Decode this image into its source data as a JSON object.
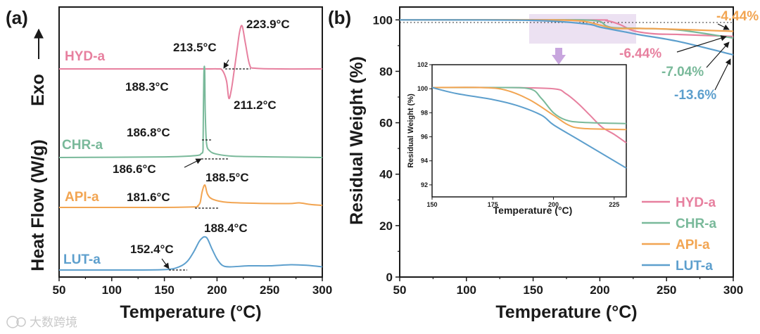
{
  "colors": {
    "HYD-a": "#e7809f",
    "CHR-a": "#79b99a",
    "API-a": "#f2a552",
    "LUT-a": "#5d9fcd"
  },
  "watermark": "大数跨境",
  "chart_data": [
    {
      "panel": "(a)",
      "type": "line",
      "title": "",
      "xlabel": "Temperature (°C)",
      "ylabel": "Heat Flow (W/g)",
      "exo_label": "Exo",
      "xlim": [
        50,
        300
      ],
      "xticks": [
        "50",
        "100",
        "150",
        "200",
        "250",
        "300"
      ],
      "yticks_shown": false,
      "series": [
        {
          "name": "HYD-a",
          "color": "#e7809f",
          "baseline_level": 3,
          "points": [
            [
              50,
              0
            ],
            [
              180,
              0
            ],
            [
              200,
              0
            ],
            [
              205,
              -0.1
            ],
            [
              209,
              -0.9
            ],
            [
              211.2,
              -2.2
            ],
            [
              213.5,
              -1.6
            ],
            [
              216,
              -0.3
            ],
            [
              219,
              1.4
            ],
            [
              221.5,
              2.8
            ],
            [
              223.9,
              3.2
            ],
            [
              227,
              1.9
            ],
            [
              231,
              0.3
            ],
            [
              236,
              0.05
            ],
            [
              260,
              0
            ],
            [
              300,
              0
            ]
          ],
          "annotations": [
            {
              "text": "213.5°C",
              "x": 213.5
            },
            {
              "text": "223.9°C",
              "x": 223.9
            },
            {
              "text": "211.2°C",
              "x": 211.2
            }
          ]
        },
        {
          "name": "CHR-a",
          "color": "#79b99a",
          "baseline_level": 2,
          "points": [
            [
              50,
              0
            ],
            [
              150,
              0.05
            ],
            [
              180,
              0.15
            ],
            [
              185,
              0.3
            ],
            [
              186.6,
              0.5
            ],
            [
              186.8,
              1.6
            ],
            [
              187.5,
              6.2
            ],
            [
              188.3,
              6.5
            ],
            [
              188.8,
              3.5
            ],
            [
              190,
              1.1
            ],
            [
              193,
              0.5
            ],
            [
              200,
              0.25
            ],
            [
              215,
              0.1
            ],
            [
              250,
              0.05
            ],
            [
              300,
              0
            ]
          ],
          "annotations": [
            {
              "text": "188.3°C",
              "x": 188.3
            },
            {
              "text": "186.8°C",
              "x": 186.8
            },
            {
              "text": "186.6°C",
              "x": 186.6
            }
          ]
        },
        {
          "name": "API-a",
          "color": "#f2a552",
          "baseline_level": 1,
          "points": [
            [
              50,
              0
            ],
            [
              140,
              0
            ],
            [
              178,
              0.05
            ],
            [
              181.6,
              0.15
            ],
            [
              184,
              0.5
            ],
            [
              186,
              1.6
            ],
            [
              188.5,
              2.2
            ],
            [
              191,
              1.3
            ],
            [
              196,
              0.8
            ],
            [
              210,
              0.5
            ],
            [
              240,
              0.4
            ],
            [
              268,
              0.38
            ],
            [
              278,
              0.45
            ],
            [
              288,
              0.3
            ],
            [
              300,
              0.2
            ]
          ],
          "annotations": [
            {
              "text": "181.6°C",
              "x": 181.6
            },
            {
              "text": "188.5°C",
              "x": 188.5
            }
          ]
        },
        {
          "name": "LUT-a",
          "color": "#5d9fcd",
          "baseline_level": 0,
          "points": [
            [
              50,
              0
            ],
            [
              120,
              0
            ],
            [
              152.4,
              0.05
            ],
            [
              165,
              0.35
            ],
            [
              172,
              0.85
            ],
            [
              178,
              1.75
            ],
            [
              183,
              2.7
            ],
            [
              186,
              3.05
            ],
            [
              188.4,
              3.15
            ],
            [
              191,
              2.95
            ],
            [
              195,
              2.05
            ],
            [
              200,
              1.05
            ],
            [
              205,
              0.45
            ],
            [
              212,
              0.3
            ],
            [
              230,
              0.4
            ],
            [
              250,
              0.4
            ],
            [
              270,
              0.5
            ],
            [
              285,
              0.45
            ],
            [
              300,
              0.3
            ]
          ],
          "annotations": [
            {
              "text": "152.4°C",
              "x": 152.4
            },
            {
              "text": "188.4°C",
              "x": 188.4
            }
          ]
        }
      ]
    },
    {
      "panel": "(b)",
      "type": "line",
      "title": "",
      "xlabel": "Temperature (°C)",
      "ylabel": "Residual Weight (%)",
      "xlim": [
        50,
        300
      ],
      "ylim": [
        0,
        105
      ],
      "xticks": [
        "50",
        "100",
        "150",
        "200",
        "250",
        "300"
      ],
      "yticks": [
        "0",
        "20",
        "40",
        "60",
        "80",
        "100"
      ],
      "legend": "bottom-right",
      "series": [
        {
          "name": "HYD-a",
          "color": "#e7809f",
          "points": [
            [
              50,
              100
            ],
            [
              190,
              100
            ],
            [
              205,
              99.7
            ],
            [
              215,
              98.2
            ],
            [
              225,
              95.8
            ],
            [
              240,
              94.6
            ],
            [
              260,
              94.3
            ],
            [
              300,
              93.56
            ]
          ],
          "final_loss": "-6.44%"
        },
        {
          "name": "CHR-a",
          "color": "#79b99a",
          "points": [
            [
              50,
              100
            ],
            [
              150,
              100
            ],
            [
              195,
              99.8
            ],
            [
              205,
              97.6
            ],
            [
              212,
              96.9
            ],
            [
              230,
              96.7
            ],
            [
              260,
              96.0
            ],
            [
              300,
              92.96
            ]
          ],
          "final_loss": "-7.04%"
        },
        {
          "name": "API-a",
          "color": "#f2a552",
          "points": [
            [
              50,
              100
            ],
            [
              150,
              100
            ],
            [
              185,
              99.6
            ],
            [
              200,
              98.0
            ],
            [
              212,
              96.7
            ],
            [
              240,
              96.6
            ],
            [
              300,
              95.56
            ]
          ],
          "final_loss": "-4.44%"
        },
        {
          "name": "LUT-a",
          "color": "#5d9fcd",
          "points": [
            [
              50,
              100
            ],
            [
              150,
              99.8
            ],
            [
              190,
              98.4
            ],
            [
              200,
              97.2
            ],
            [
              220,
              95.2
            ],
            [
              230,
              94.2
            ],
            [
              260,
              91.5
            ],
            [
              300,
              86.4
            ]
          ],
          "final_loss": "-13.6%"
        }
      ],
      "inset": {
        "xlabel": "Temperature (°C)",
        "ylabel": "Residual Weight (%)",
        "xlim": [
          150,
          230
        ],
        "ylim": [
          91,
          102
        ],
        "xticks": [
          "150",
          "175",
          "200",
          "225"
        ],
        "yticks": [
          "92",
          "94",
          "96",
          "98",
          "100",
          "102"
        ],
        "series": [
          {
            "name": "HYD-a",
            "points": [
              [
                150,
                100.1
              ],
              [
                180,
                100.1
              ],
              [
                200,
                100.0
              ],
              [
                205,
                99.6
              ],
              [
                210,
                98.8
              ],
              [
                215,
                97.8
              ],
              [
                220,
                96.8
              ],
              [
                225,
                96.2
              ],
              [
                230,
                95.5
              ]
            ]
          },
          {
            "name": "CHR-a",
            "points": [
              [
                150,
                100.1
              ],
              [
                175,
                100.1
              ],
              [
                190,
                100.0
              ],
              [
                195,
                99.2
              ],
              [
                200,
                98.0
              ],
              [
                205,
                97.4
              ],
              [
                212,
                97.2
              ],
              [
                230,
                97.1
              ]
            ]
          },
          {
            "name": "API-a",
            "points": [
              [
                150,
                100.1
              ],
              [
                170,
                100.1
              ],
              [
                180,
                99.9
              ],
              [
                190,
                99.1
              ],
              [
                200,
                97.8
              ],
              [
                206,
                97.0
              ],
              [
                212,
                96.7
              ],
              [
                230,
                96.6
              ]
            ]
          },
          {
            "name": "LUT-a",
            "points": [
              [
                150,
                100.1
              ],
              [
                160,
                99.6
              ],
              [
                175,
                99.1
              ],
              [
                185,
                98.6
              ],
              [
                195,
                97.8
              ],
              [
                200,
                97.0
              ],
              [
                210,
                95.8
              ],
              [
                220,
                94.6
              ],
              [
                230,
                93.4
              ]
            ]
          }
        ]
      }
    }
  ]
}
